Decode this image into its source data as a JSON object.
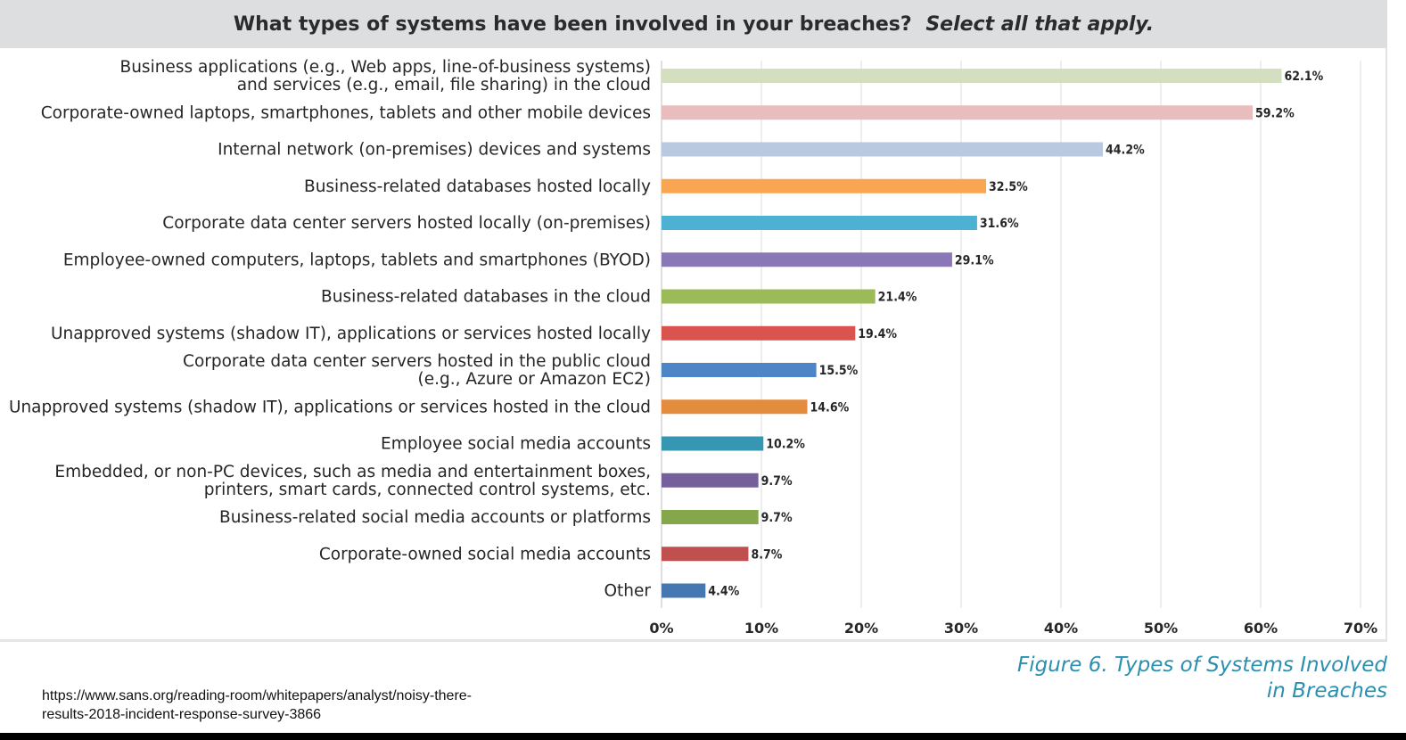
{
  "header": {
    "title": "What types of systems have been involved in your breaches?",
    "subtitle": "Select all that apply."
  },
  "caption": {
    "line1": "Figure 6. Types of Systems Involved",
    "line2": "in Breaches"
  },
  "source": {
    "line1": "https://www.sans.org/reading-room/whitepapers/analyst/noisy-there-",
    "line2": "results-2018-incident-response-survey-3866"
  },
  "chart_data": {
    "type": "bar",
    "orientation": "horizontal",
    "title": "What types of systems have been involved in your breaches? Select all that apply.",
    "xlim": [
      0,
      70
    ],
    "x_ticks": [
      "0%",
      "10%",
      "20%",
      "30%",
      "40%",
      "50%",
      "60%",
      "70%"
    ],
    "grid": "vertical",
    "legend": "none",
    "categories": [
      [
        "Business applications (e.g., Web apps, line-of-business systems)",
        "and services (e.g., email, file sharing) in the cloud"
      ],
      [
        "Corporate-owned laptops, smartphones, tablets and other mobile devices"
      ],
      [
        "Internal network (on-premises) devices and systems"
      ],
      [
        "Business-related databases hosted locally"
      ],
      [
        "Corporate data center servers hosted locally (on-premises)"
      ],
      [
        "Employee-owned computers, laptops, tablets and smartphones (BYOD)"
      ],
      [
        "Business-related databases in the cloud"
      ],
      [
        "Unapproved systems (shadow IT), applications or services hosted locally"
      ],
      [
        "Corporate data center servers hosted in the public cloud",
        "(e.g., Azure or Amazon EC2)"
      ],
      [
        "Unapproved systems (shadow IT), applications or services hosted in the cloud"
      ],
      [
        "Employee social media accounts"
      ],
      [
        "Embedded, or non-PC devices, such as media and entertainment boxes,",
        "printers, smart cards, connected control systems, etc."
      ],
      [
        "Business-related social media accounts or platforms"
      ],
      [
        "Corporate-owned social media accounts"
      ],
      [
        "Other"
      ]
    ],
    "values": [
      62.1,
      59.2,
      44.2,
      32.5,
      31.6,
      29.1,
      21.4,
      19.4,
      15.5,
      14.6,
      10.2,
      9.7,
      9.7,
      8.7,
      4.4
    ],
    "value_labels": [
      "62.1%",
      "59.2%",
      "44.2%",
      "32.5%",
      "31.6%",
      "29.1%",
      "21.4%",
      "19.4%",
      "15.5%",
      "14.6%",
      "10.2%",
      "9.7%",
      "9.7%",
      "8.7%",
      "4.4%"
    ],
    "colors": [
      "#d4dfbf",
      "#e9bcbd",
      "#b8c9e0",
      "#f9a653",
      "#4cb1d2",
      "#8a77b6",
      "#9abb58",
      "#d9534f",
      "#4d86c6",
      "#e48c3e",
      "#3697b3",
      "#76609c",
      "#85a64a",
      "#c0504d",
      "#4577b2"
    ]
  }
}
